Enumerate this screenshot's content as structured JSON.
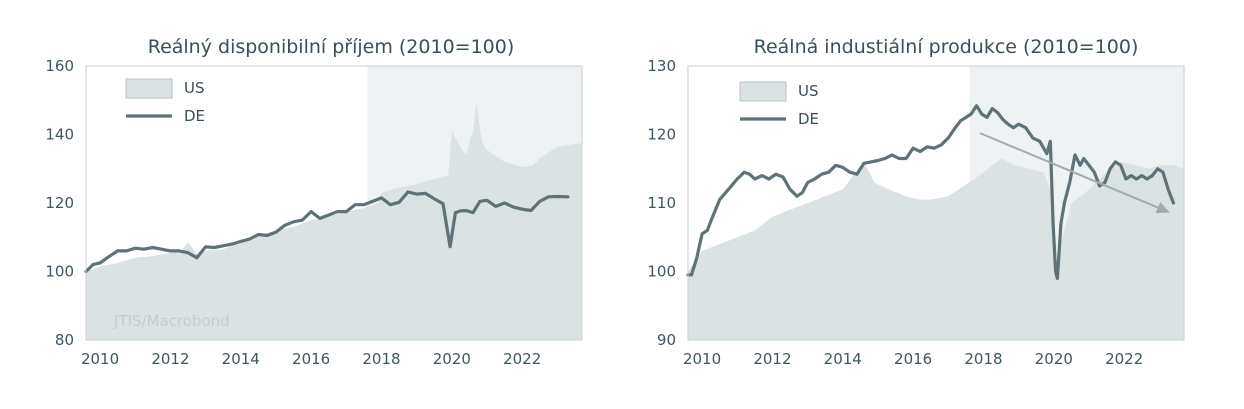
{
  "colors": {
    "background": "#ffffff",
    "shade": "#eef2f3",
    "us_area": "#dae2e3",
    "de_line": "#5f7277",
    "trend_arrow": "#9fadb1",
    "text": "#3a4f58"
  },
  "chart_data": [
    {
      "type": "area",
      "title": "Reálný disponibilní příjem (2010=100)",
      "source": "JTIS/Macrobond",
      "xlim": [
        2009.6,
        2023.7
      ],
      "ylim": [
        80,
        160
      ],
      "yticks": [
        80,
        100,
        120,
        140,
        160
      ],
      "xticks": [
        2010,
        2012,
        2014,
        2016,
        2018,
        2020,
        2022
      ],
      "shaded_from": 2017.6,
      "legend": {
        "position": "top-left",
        "entries": [
          {
            "label": "US",
            "kind": "area"
          },
          {
            "label": "DE",
            "kind": "line"
          }
        ]
      },
      "series": [
        {
          "name": "US",
          "kind": "area",
          "x": [
            2009.6,
            2010.0,
            2010.5,
            2011.0,
            2011.5,
            2012.0,
            2012.3,
            2012.5,
            2012.8,
            2013.0,
            2013.5,
            2014.0,
            2014.5,
            2015.0,
            2015.5,
            2016.0,
            2016.5,
            2017.0,
            2017.5,
            2017.9,
            2018.0,
            2018.5,
            2019.0,
            2019.5,
            2019.9,
            2020.0,
            2020.2,
            2020.4,
            2020.6,
            2020.7,
            2020.85,
            2021.0,
            2021.5,
            2022.0,
            2022.3,
            2022.5,
            2023.0,
            2023.7
          ],
          "values": [
            100,
            101.5,
            102.5,
            104,
            104.5,
            105.5,
            106,
            108.5,
            104.5,
            106,
            106.5,
            108.5,
            110.5,
            112,
            113,
            115,
            116,
            117.5,
            118.5,
            120,
            123,
            124.5,
            125.5,
            127,
            128,
            141,
            137,
            134,
            141,
            149,
            138,
            135.5,
            132,
            130.5,
            131,
            133,
            136.5,
            137.5
          ]
        },
        {
          "name": "DE",
          "kind": "line",
          "x": [
            2009.6,
            2009.8,
            2010.0,
            2010.2,
            2010.5,
            2010.75,
            2011.0,
            2011.25,
            2011.5,
            2011.75,
            2012.0,
            2012.25,
            2012.5,
            2012.75,
            2013.0,
            2013.25,
            2013.5,
            2013.75,
            2014.0,
            2014.25,
            2014.5,
            2014.75,
            2015.0,
            2015.25,
            2015.5,
            2015.75,
            2016.0,
            2016.25,
            2016.5,
            2016.75,
            2017.0,
            2017.25,
            2017.5,
            2017.75,
            2018.0,
            2018.25,
            2018.5,
            2018.75,
            2019.0,
            2019.25,
            2019.5,
            2019.75,
            2019.95,
            2020.1,
            2020.25,
            2020.4,
            2020.6,
            2020.8,
            2021.0,
            2021.25,
            2021.5,
            2021.75,
            2022.0,
            2022.25,
            2022.5,
            2022.75,
            2023.0,
            2023.3
          ],
          "values": [
            100,
            102,
            102.5,
            104,
            106,
            106,
            106.8,
            106.5,
            107,
            106.5,
            106,
            106,
            105.5,
            104,
            107.2,
            107,
            107.5,
            108,
            108.8,
            109.5,
            110.8,
            110.5,
            111.5,
            113.5,
            114.5,
            115,
            117.5,
            115.5,
            116.5,
            117.5,
            117.5,
            119.5,
            119.5,
            120.5,
            121.5,
            119.5,
            120.2,
            123.2,
            122.6,
            122.8,
            121.2,
            119.8,
            107.2,
            117.2,
            117.7,
            117.8,
            117.2,
            120.5,
            120.8,
            119,
            120,
            118.8,
            118.2,
            117.8,
            120.5,
            121.8,
            121.9,
            121.8
          ]
        }
      ]
    },
    {
      "type": "area",
      "title": "Reálná industiální produkce (2010=100)",
      "xlim": [
        2009.6,
        2023.7
      ],
      "ylim": [
        90,
        130
      ],
      "yticks": [
        90,
        100,
        110,
        120,
        130
      ],
      "xticks": [
        2010,
        2012,
        2014,
        2016,
        2018,
        2020,
        2022
      ],
      "shaded_from": 2017.6,
      "legend": {
        "position": "top-left",
        "entries": [
          {
            "label": "US",
            "kind": "area"
          },
          {
            "label": "DE",
            "kind": "line"
          }
        ]
      },
      "trend_arrow": {
        "from": [
          2017.9,
          120.2
        ],
        "to": [
          2023.3,
          108.6
        ]
      },
      "series": [
        {
          "name": "US",
          "kind": "area",
          "x": [
            2009.6,
            2010.0,
            2010.5,
            2011.0,
            2011.5,
            2012.0,
            2012.5,
            2013.0,
            2013.5,
            2014.0,
            2014.3,
            2014.6,
            2014.9,
            2015.3,
            2015.8,
            2016.2,
            2016.5,
            2017.0,
            2017.3,
            2017.6,
            2018.0,
            2018.5,
            2018.9,
            2019.3,
            2019.7,
            2019.9,
            2020.1,
            2020.2,
            2020.5,
            2020.9,
            2021.2,
            2021.5,
            2021.9,
            2022.3,
            2022.7,
            2023.0,
            2023.4,
            2023.7
          ],
          "values": [
            100,
            103,
            104,
            105,
            106,
            108,
            109,
            110,
            111,
            112,
            114,
            116,
            113,
            112,
            111,
            110.5,
            110.5,
            111,
            112,
            113,
            114.5,
            116.5,
            115.5,
            115,
            114.5,
            112,
            100,
            104,
            110,
            111.5,
            113,
            114.5,
            116,
            115.5,
            115,
            115.5,
            115.5,
            115
          ]
        },
        {
          "name": "DE",
          "kind": "line",
          "x": [
            2009.6,
            2009.7,
            2009.85,
            2010.0,
            2010.15,
            2010.3,
            2010.5,
            2010.75,
            2011.0,
            2011.2,
            2011.35,
            2011.5,
            2011.7,
            2011.9,
            2012.1,
            2012.3,
            2012.5,
            2012.7,
            2012.85,
            2013.0,
            2013.2,
            2013.4,
            2013.6,
            2013.8,
            2014.0,
            2014.2,
            2014.4,
            2014.6,
            2014.8,
            2015.0,
            2015.2,
            2015.4,
            2015.6,
            2015.8,
            2016.0,
            2016.2,
            2016.4,
            2016.6,
            2016.8,
            2017.0,
            2017.2,
            2017.35,
            2017.5,
            2017.65,
            2017.8,
            2017.95,
            2018.1,
            2018.25,
            2018.4,
            2018.55,
            2018.7,
            2018.85,
            2019.0,
            2019.2,
            2019.4,
            2019.6,
            2019.8,
            2019.9,
            2019.98,
            2020.05,
            2020.1,
            2020.2,
            2020.3,
            2020.45,
            2020.6,
            2020.75,
            2020.85,
            2021.0,
            2021.15,
            2021.3,
            2021.45,
            2021.6,
            2021.75,
            2021.9,
            2022.05,
            2022.2,
            2022.35,
            2022.5,
            2022.65,
            2022.8,
            2022.95,
            2023.1,
            2023.25,
            2023.4
          ],
          "values": [
            99.5,
            99.5,
            102,
            105.5,
            106,
            108,
            110.5,
            112,
            113.5,
            114.5,
            114.2,
            113.5,
            114,
            113.5,
            114.2,
            113.8,
            112,
            111,
            111.5,
            113,
            113.5,
            114.2,
            114.5,
            115.5,
            115.2,
            114.5,
            114.2,
            115.8,
            116,
            116.2,
            116.5,
            117,
            116.5,
            116.5,
            118,
            117.5,
            118.2,
            118,
            118.5,
            119.5,
            121,
            122,
            122.5,
            123,
            124.2,
            123,
            122.5,
            123.8,
            123.2,
            122.2,
            121.5,
            121,
            121.5,
            121,
            119.5,
            119,
            117.2,
            119,
            107,
            100,
            99,
            107,
            110,
            113,
            117,
            115.5,
            116.5,
            115.5,
            114.5,
            112.5,
            113,
            115,
            116,
            115.5,
            113.5,
            114,
            113.5,
            114,
            113.5,
            114,
            115,
            114.5,
            112,
            110
          ]
        }
      ]
    }
  ]
}
